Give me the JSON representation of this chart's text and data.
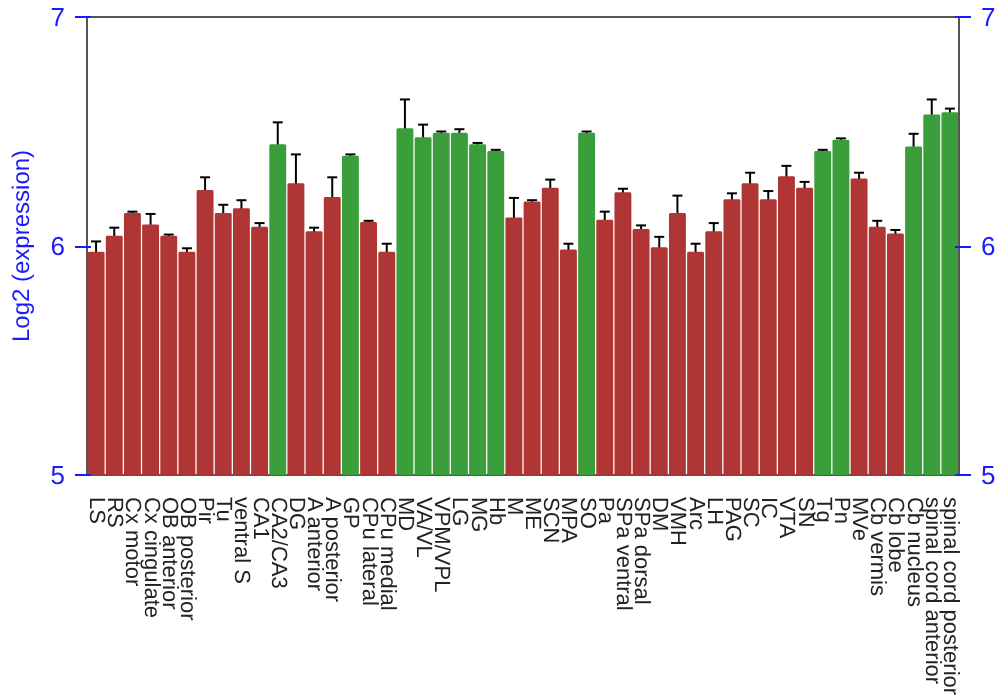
{
  "chart_data": {
    "type": "bar",
    "ylabel": "Log2 (expression)",
    "categories": [
      "LS",
      "RS",
      "Cx motor",
      "Cx cingulate",
      "OB anterior",
      "OB posterior",
      "Pir",
      "Tu",
      "ventral S",
      "CA1",
      "CA2/CA3",
      "DG",
      "A anterior",
      "A posterior",
      "GP",
      "CPu lateral",
      "CPu medial",
      "MD",
      "VA/VL",
      "VPM/VPL",
      "LG",
      "MG",
      "Hb",
      "M",
      "ME",
      "SCN",
      "MPA",
      "SO",
      "Pa",
      "SPa ventral",
      "SPa dorsal",
      "DM",
      "VMH",
      "Arc",
      "LH",
      "PAG",
      "SC",
      "IC",
      "VTA",
      "SN",
      "Tg",
      "Pn",
      "MVe",
      "Cb vermis",
      "Cb lobe",
      "Cb nucleus",
      "spinal cord anterior",
      "spinal cord posterior"
    ],
    "values": [
      5.97,
      6.04,
      6.14,
      6.09,
      6.04,
      5.97,
      6.24,
      6.14,
      6.16,
      6.08,
      6.44,
      6.27,
      6.06,
      6.21,
      6.39,
      6.1,
      5.97,
      6.51,
      6.47,
      6.49,
      6.49,
      6.44,
      6.41,
      6.12,
      6.19,
      6.25,
      5.98,
      6.49,
      6.11,
      6.23,
      6.07,
      5.99,
      6.14,
      5.97,
      6.06,
      6.2,
      6.27,
      6.2,
      6.3,
      6.25,
      6.41,
      6.46,
      6.29,
      6.08,
      6.05,
      6.43,
      6.57,
      6.58
    ],
    "errors": [
      0.05,
      0.04,
      0.01,
      0.05,
      0.01,
      0.02,
      0.06,
      0.04,
      0.04,
      0.02,
      0.1,
      0.13,
      0.02,
      0.09,
      0.01,
      0.01,
      0.04,
      0.13,
      0.06,
      0.01,
      0.02,
      0.01,
      0.01,
      0.09,
      0.01,
      0.04,
      0.03,
      0.01,
      0.04,
      0.02,
      0.02,
      0.05,
      0.08,
      0.04,
      0.04,
      0.03,
      0.05,
      0.04,
      0.05,
      0.03,
      0.01,
      0.01,
      0.03,
      0.03,
      0.02,
      0.06,
      0.07,
      0.02
    ],
    "colors": [
      "#b03535",
      "#b03535",
      "#b03535",
      "#b03535",
      "#b03535",
      "#b03535",
      "#b03535",
      "#b03535",
      "#b03535",
      "#b03535",
      "#3a9e3a",
      "#b03535",
      "#b03535",
      "#b03535",
      "#3a9e3a",
      "#b03535",
      "#b03535",
      "#3a9e3a",
      "#3a9e3a",
      "#3a9e3a",
      "#3a9e3a",
      "#3a9e3a",
      "#3a9e3a",
      "#b03535",
      "#b03535",
      "#b03535",
      "#b03535",
      "#3a9e3a",
      "#b03535",
      "#b03535",
      "#b03535",
      "#b03535",
      "#b03535",
      "#b03535",
      "#b03535",
      "#b03535",
      "#b03535",
      "#b03535",
      "#b03535",
      "#b03535",
      "#3a9e3a",
      "#3a9e3a",
      "#b03535",
      "#b03535",
      "#b03535",
      "#3a9e3a",
      "#3a9e3a",
      "#3a9e3a"
    ],
    "ylim": [
      5,
      7
    ],
    "yticks": [
      5,
      6,
      7
    ],
    "y2lim": [
      5,
      7
    ],
    "y2ticks": [
      5,
      6,
      7
    ]
  }
}
